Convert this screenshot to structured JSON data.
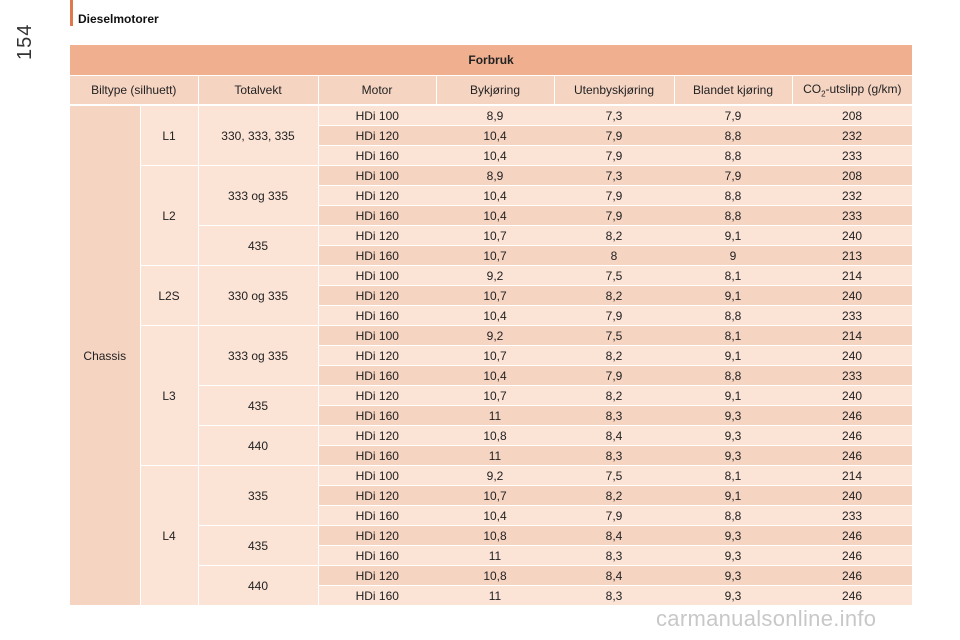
{
  "page": {
    "section_title": "Dieselmotorer",
    "page_number": "154",
    "watermark": "carmanualsonline.info"
  },
  "table": {
    "title": "Forbruk",
    "columns": {
      "biltype": "Biltype (silhuett)",
      "totalvekt": "Totalvekt",
      "motor": "Motor",
      "bykjoring": "Bykjøring",
      "utenbyskjoring": "Utenbyskjøring",
      "blandet": "Blandet kjøring",
      "co2_prefix": "CO",
      "co2_sub": "2",
      "co2_suffix": "-utslipp (g/km)"
    },
    "biltype": "Chassis",
    "groups": [
      {
        "length": "L1",
        "weights": [
          {
            "label": "330, 333, 335",
            "rows": [
              {
                "motor": "HDi 100",
                "by": "8,9",
                "uten": "7,3",
                "blandet": "7,9",
                "co2": "208"
              },
              {
                "motor": "HDi 120",
                "by": "10,4",
                "uten": "7,9",
                "blandet": "8,8",
                "co2": "232"
              },
              {
                "motor": "HDi 160",
                "by": "10,4",
                "uten": "7,9",
                "blandet": "8,8",
                "co2": "233"
              }
            ]
          }
        ]
      },
      {
        "length": "L2",
        "weights": [
          {
            "label": "333 og 335",
            "rows": [
              {
                "motor": "HDi 100",
                "by": "8,9",
                "uten": "7,3",
                "blandet": "7,9",
                "co2": "208"
              },
              {
                "motor": "HDi 120",
                "by": "10,4",
                "uten": "7,9",
                "blandet": "8,8",
                "co2": "232"
              },
              {
                "motor": "HDi 160",
                "by": "10,4",
                "uten": "7,9",
                "blandet": "8,8",
                "co2": "233"
              }
            ]
          },
          {
            "label": "435",
            "rows": [
              {
                "motor": "HDi 120",
                "by": "10,7",
                "uten": "8,2",
                "blandet": "9,1",
                "co2": "240"
              },
              {
                "motor": "HDi 160",
                "by": "10,7",
                "uten": "8",
                "blandet": "9",
                "co2": "213"
              }
            ]
          }
        ]
      },
      {
        "length": "L2S",
        "weights": [
          {
            "label": "330 og 335",
            "rows": [
              {
                "motor": "HDi 100",
                "by": "9,2",
                "uten": "7,5",
                "blandet": "8,1",
                "co2": "214"
              },
              {
                "motor": "HDi 120",
                "by": "10,7",
                "uten": "8,2",
                "blandet": "9,1",
                "co2": "240"
              },
              {
                "motor": "HDi 160",
                "by": "10,4",
                "uten": "7,9",
                "blandet": "8,8",
                "co2": "233"
              }
            ]
          }
        ]
      },
      {
        "length": "L3",
        "weights": [
          {
            "label": "333 og 335",
            "rows": [
              {
                "motor": "HDi 100",
                "by": "9,2",
                "uten": "7,5",
                "blandet": "8,1",
                "co2": "214"
              },
              {
                "motor": "HDi 120",
                "by": "10,7",
                "uten": "8,2",
                "blandet": "9,1",
                "co2": "240"
              },
              {
                "motor": "HDi 160",
                "by": "10,4",
                "uten": "7,9",
                "blandet": "8,8",
                "co2": "233"
              }
            ]
          },
          {
            "label": "435",
            "rows": [
              {
                "motor": "HDi 120",
                "by": "10,7",
                "uten": "8,2",
                "blandet": "9,1",
                "co2": "240"
              },
              {
                "motor": "HDi 160",
                "by": "11",
                "uten": "8,3",
                "blandet": "9,3",
                "co2": "246"
              }
            ]
          },
          {
            "label": "440",
            "rows": [
              {
                "motor": "HDi 120",
                "by": "10,8",
                "uten": "8,4",
                "blandet": "9,3",
                "co2": "246"
              },
              {
                "motor": "HDi 160",
                "by": "11",
                "uten": "8,3",
                "blandet": "9,3",
                "co2": "246"
              }
            ]
          }
        ]
      },
      {
        "length": "L4",
        "weights": [
          {
            "label": "335",
            "rows": [
              {
                "motor": "HDi 100",
                "by": "9,2",
                "uten": "7,5",
                "blandet": "8,1",
                "co2": "214"
              },
              {
                "motor": "HDi 120",
                "by": "10,7",
                "uten": "8,2",
                "blandet": "9,1",
                "co2": "240"
              },
              {
                "motor": "HDi 160",
                "by": "10,4",
                "uten": "7,9",
                "blandet": "8,8",
                "co2": "233"
              }
            ]
          },
          {
            "label": "435",
            "rows": [
              {
                "motor": "HDi 120",
                "by": "10,8",
                "uten": "8,4",
                "blandet": "9,3",
                "co2": "246"
              },
              {
                "motor": "HDi 160",
                "by": "11",
                "uten": "8,3",
                "blandet": "9,3",
                "co2": "246"
              }
            ]
          },
          {
            "label": "440",
            "rows": [
              {
                "motor": "HDi 120",
                "by": "10,8",
                "uten": "8,4",
                "blandet": "9,3",
                "co2": "246"
              },
              {
                "motor": "HDi 160",
                "by": "11",
                "uten": "8,3",
                "blandet": "9,3",
                "co2": "246"
              }
            ]
          }
        ]
      }
    ]
  }
}
